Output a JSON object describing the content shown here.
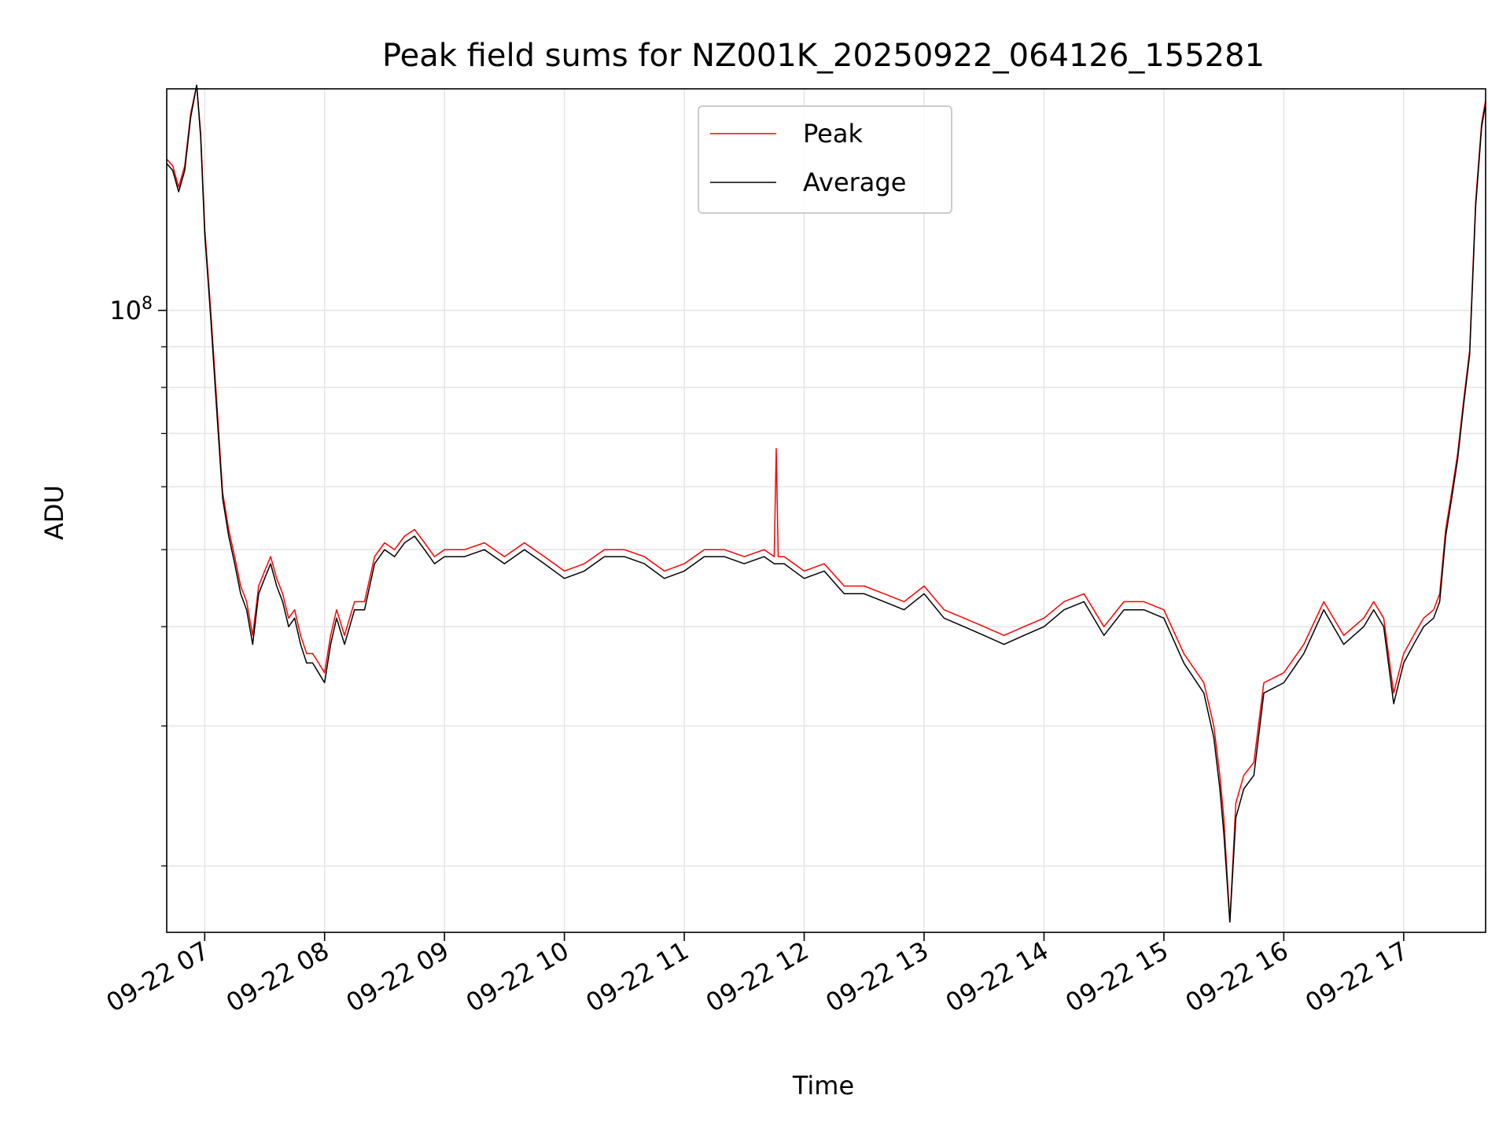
{
  "chart_data": {
    "type": "line",
    "title": "Peak field sums for NZ001K_20250922_064126_155281",
    "xlabel": "Time",
    "ylabel": "ADU",
    "y_scale": "log",
    "ylim": [
      16500000,
      190000000
    ],
    "xlim": [
      "09-22 06:41",
      "09-22 17:41"
    ],
    "x_ticks": [
      "09-22 07",
      "09-22 08",
      "09-22 09",
      "09-22 10",
      "09-22 11",
      "09-22 12",
      "09-22 13",
      "09-22 14",
      "09-22 15",
      "09-22 16",
      "09-22 17"
    ],
    "y_tick_labels": [
      {
        "value": 100000000,
        "base": "10",
        "exp": "8"
      }
    ],
    "y_minor_ticks": [
      20000000,
      30000000,
      40000000,
      50000000,
      60000000,
      70000000,
      80000000,
      90000000
    ],
    "grid": true,
    "legend": {
      "position": "top-center",
      "entries": [
        "Peak",
        "Average"
      ]
    },
    "colors": {
      "Peak": "#ff0000",
      "Average": "#000000"
    },
    "series": [
      {
        "name": "Average",
        "x": [
          "06:41",
          "06:44",
          "06:47",
          "06:50",
          "06:53",
          "06:56",
          "06:58",
          "07:00",
          "07:03",
          "07:06",
          "07:09",
          "07:12",
          "07:15",
          "07:18",
          "07:21",
          "07:24",
          "07:27",
          "07:30",
          "07:33",
          "07:36",
          "07:39",
          "07:42",
          "07:45",
          "07:48",
          "07:51",
          "07:54",
          "07:57",
          "08:00",
          "08:03",
          "08:06",
          "08:10",
          "08:15",
          "08:20",
          "08:25",
          "08:30",
          "08:35",
          "08:40",
          "08:45",
          "08:50",
          "08:55",
          "09:00",
          "09:10",
          "09:20",
          "09:30",
          "09:40",
          "09:50",
          "10:00",
          "10:10",
          "10:20",
          "10:30",
          "10:40",
          "10:50",
          "11:00",
          "11:10",
          "11:20",
          "11:30",
          "11:40",
          "11:45",
          "11:50",
          "12:00",
          "12:10",
          "12:20",
          "12:30",
          "12:40",
          "12:50",
          "13:00",
          "13:10",
          "13:20",
          "13:30",
          "13:40",
          "13:50",
          "14:00",
          "14:10",
          "14:20",
          "14:30",
          "14:40",
          "14:50",
          "15:00",
          "15:10",
          "15:20",
          "15:25",
          "15:28",
          "15:30",
          "15:33",
          "15:36",
          "15:40",
          "15:45",
          "15:50",
          "16:00",
          "16:10",
          "16:20",
          "16:30",
          "16:40",
          "16:45",
          "16:50",
          "16:55",
          "17:00",
          "17:05",
          "17:10",
          "17:15",
          "17:18",
          "17:21",
          "17:24",
          "17:27",
          "17:30",
          "17:33",
          "17:36",
          "17:39",
          "17:41"
        ],
        "y": [
          153000000,
          150000000,
          141000000,
          150000000,
          175000000,
          192000000,
          165000000,
          125000000,
          98000000,
          75000000,
          58000000,
          52000000,
          48000000,
          44000000,
          42000000,
          38000000,
          44000000,
          46000000,
          48000000,
          45000000,
          43000000,
          40000000,
          41000000,
          38000000,
          36000000,
          36000000,
          35000000,
          34000000,
          38000000,
          41000000,
          38000000,
          42000000,
          42000000,
          48000000,
          50000000,
          49000000,
          51000000,
          52000000,
          50000000,
          48000000,
          49000000,
          49000000,
          50000000,
          48000000,
          50000000,
          48000000,
          46000000,
          47000000,
          49000000,
          49000000,
          48000000,
          46000000,
          47000000,
          49000000,
          49000000,
          48000000,
          49000000,
          48000000,
          48000000,
          46000000,
          47000000,
          44000000,
          44000000,
          43000000,
          42000000,
          44000000,
          41000000,
          40000000,
          39000000,
          38000000,
          39000000,
          40000000,
          42000000,
          43000000,
          39000000,
          42000000,
          42000000,
          41000000,
          36000000,
          33000000,
          29000000,
          25000000,
          22000000,
          17000000,
          23000000,
          25000000,
          26000000,
          33000000,
          34000000,
          37000000,
          42000000,
          38000000,
          40000000,
          42000000,
          40000000,
          32000000,
          36000000,
          38000000,
          40000000,
          41000000,
          43000000,
          52000000,
          58000000,
          65000000,
          76000000,
          88000000,
          135000000,
          170000000,
          182000000
        ]
      },
      {
        "name": "Peak",
        "x": [
          "06:41",
          "06:44",
          "06:47",
          "06:50",
          "06:53",
          "06:56",
          "06:58",
          "07:00",
          "07:03",
          "07:06",
          "07:09",
          "07:12",
          "07:15",
          "07:18",
          "07:21",
          "07:24",
          "07:27",
          "07:30",
          "07:33",
          "07:36",
          "07:39",
          "07:42",
          "07:45",
          "07:48",
          "07:51",
          "07:54",
          "07:57",
          "08:00",
          "08:03",
          "08:06",
          "08:10",
          "08:15",
          "08:20",
          "08:25",
          "08:30",
          "08:35",
          "08:40",
          "08:45",
          "08:50",
          "08:55",
          "09:00",
          "09:10",
          "09:20",
          "09:30",
          "09:40",
          "09:50",
          "10:00",
          "10:10",
          "10:20",
          "10:30",
          "10:40",
          "10:50",
          "11:00",
          "11:10",
          "11:20",
          "11:30",
          "11:40",
          "11:45",
          "11:46",
          "11:47",
          "11:50",
          "12:00",
          "12:10",
          "12:20",
          "12:30",
          "12:40",
          "12:50",
          "13:00",
          "13:10",
          "13:20",
          "13:30",
          "13:40",
          "13:50",
          "14:00",
          "14:10",
          "14:20",
          "14:30",
          "14:40",
          "14:50",
          "15:00",
          "15:10",
          "15:20",
          "15:25",
          "15:28",
          "15:30",
          "15:33",
          "15:36",
          "15:40",
          "15:45",
          "15:50",
          "16:00",
          "16:10",
          "16:20",
          "16:30",
          "16:40",
          "16:45",
          "16:50",
          "16:55",
          "17:00",
          "17:05",
          "17:10",
          "17:15",
          "17:18",
          "17:21",
          "17:24",
          "17:27",
          "17:30",
          "17:33",
          "17:36",
          "17:39",
          "17:41"
        ],
        "y": [
          155000000,
          152000000,
          143000000,
          152000000,
          177000000,
          192000000,
          167000000,
          127000000,
          100000000,
          77000000,
          59000000,
          53000000,
          49000000,
          45000000,
          43000000,
          39000000,
          45000000,
          47000000,
          49000000,
          46000000,
          44000000,
          41000000,
          42000000,
          39000000,
          37000000,
          37000000,
          36000000,
          35000000,
          39000000,
          42000000,
          39000000,
          43000000,
          43000000,
          49000000,
          51000000,
          50000000,
          52000000,
          53000000,
          51000000,
          49000000,
          50000000,
          50000000,
          51000000,
          49000000,
          51000000,
          49000000,
          47000000,
          48000000,
          50000000,
          50000000,
          49000000,
          47000000,
          48000000,
          50000000,
          50000000,
          49000000,
          50000000,
          49000000,
          67000000,
          49000000,
          49000000,
          47000000,
          48000000,
          45000000,
          45000000,
          44000000,
          43000000,
          45000000,
          42000000,
          41000000,
          40000000,
          39000000,
          40000000,
          41000000,
          43000000,
          44000000,
          40000000,
          43000000,
          43000000,
          42000000,
          37000000,
          34000000,
          30000000,
          26000000,
          23000000,
          17000000,
          24000000,
          26000000,
          27000000,
          34000000,
          35000000,
          38000000,
          43000000,
          39000000,
          41000000,
          43000000,
          41000000,
          33000000,
          37000000,
          39000000,
          41000000,
          42000000,
          44000000,
          53000000,
          59000000,
          66000000,
          77000000,
          89000000,
          137000000,
          172000000,
          184000000
        ]
      }
    ]
  }
}
